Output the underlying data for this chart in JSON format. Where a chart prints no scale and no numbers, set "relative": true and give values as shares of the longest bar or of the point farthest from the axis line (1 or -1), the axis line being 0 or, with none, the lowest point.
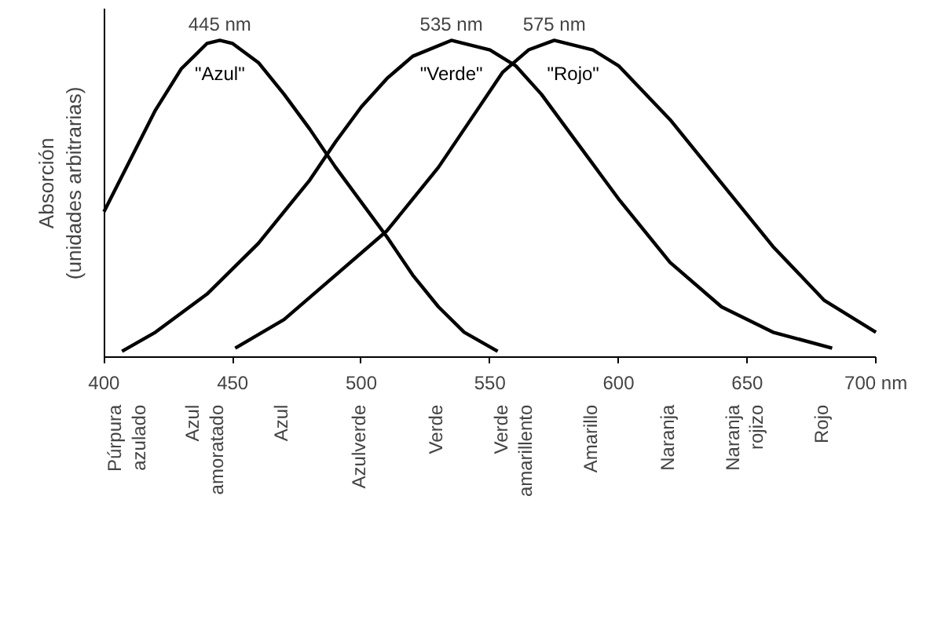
{
  "chart_data": {
    "type": "line",
    "relative": true,
    "ylabel": "Absorción\n(unidades arbitrarias)",
    "xlim": [
      400,
      700
    ],
    "xticks": [
      400,
      450,
      500,
      550,
      600,
      650,
      {
        "value": 700,
        "label": "700 nm"
      }
    ],
    "grid": false,
    "marker": "none",
    "line_style": "solid",
    "series": [
      {
        "name": "\"Azul\"",
        "color": "#000000",
        "x": [
          400,
          410,
          420,
          430,
          440,
          445,
          450,
          460,
          470,
          480,
          490,
          500,
          510,
          520,
          530,
          540,
          553
        ],
        "values": [
          0.46,
          0.62,
          0.78,
          0.91,
          0.99,
          1.0,
          0.99,
          0.93,
          0.83,
          0.72,
          0.6,
          0.49,
          0.38,
          0.26,
          0.16,
          0.08,
          0.02
        ]
      },
      {
        "name": "\"Verde\"",
        "color": "#000000",
        "x": [
          407,
          420,
          440,
          460,
          480,
          490,
          500,
          510,
          520,
          535,
          550,
          560,
          570,
          580,
          600,
          620,
          640,
          660,
          683
        ],
        "values": [
          0.02,
          0.08,
          0.2,
          0.36,
          0.56,
          0.68,
          0.79,
          0.88,
          0.95,
          1.0,
          0.97,
          0.92,
          0.83,
          0.72,
          0.5,
          0.3,
          0.16,
          0.08,
          0.03
        ]
      },
      {
        "name": "\"Rojo\"",
        "color": "#000000",
        "x": [
          451,
          470,
          490,
          510,
          530,
          545,
          555,
          565,
          575,
          590,
          600,
          620,
          640,
          660,
          680,
          700
        ],
        "values": [
          0.03,
          0.12,
          0.26,
          0.4,
          0.6,
          0.78,
          0.9,
          0.97,
          1.0,
          0.97,
          0.92,
          0.75,
          0.55,
          0.35,
          0.18,
          0.08
        ]
      }
    ],
    "annotations": [
      {
        "text": "445 nm",
        "x": 445,
        "y": 1.0
      },
      {
        "text": "535 nm",
        "x": 535,
        "y": 1.0
      },
      {
        "text": "575 nm",
        "x": 575,
        "y": 1.0
      },
      "Púrpura\nazulado",
      "Azul\namoratado",
      "Azul",
      "Azulverde",
      "Verde",
      "Verde\namarillento",
      "Amarillo",
      "Naranja",
      "Naranja\nrojizo",
      "Rojo"
    ]
  }
}
